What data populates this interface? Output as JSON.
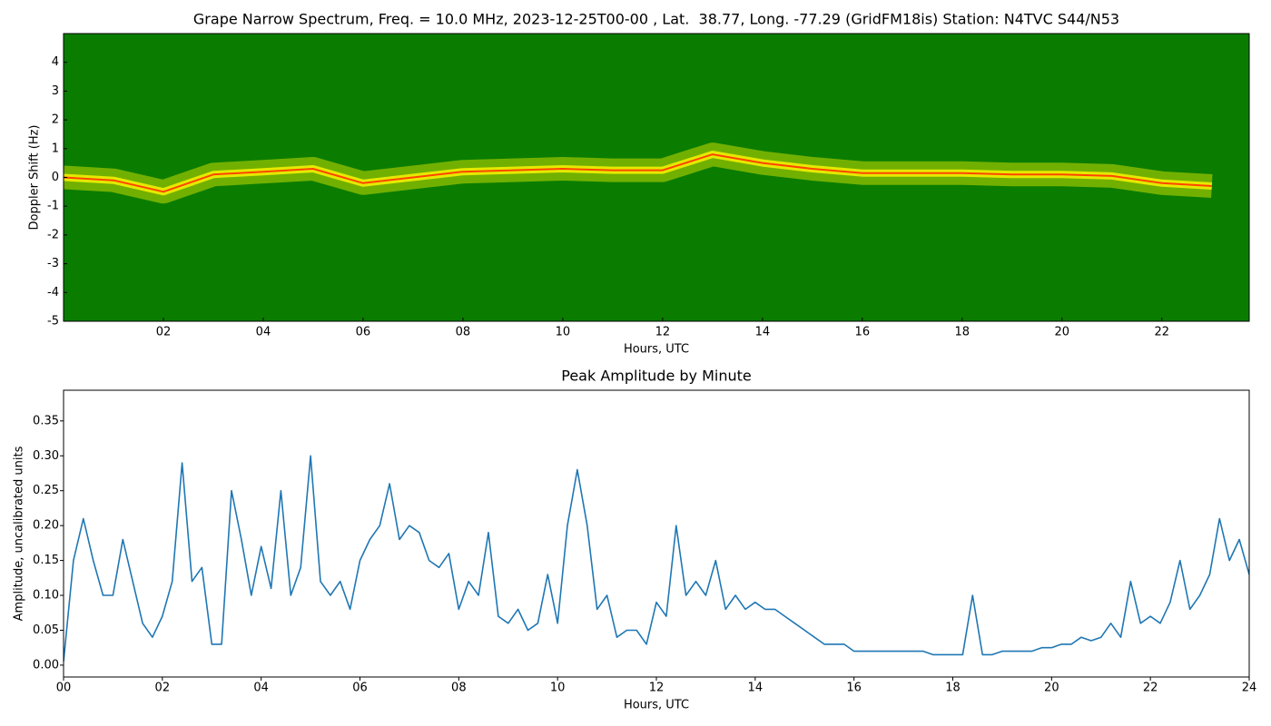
{
  "chart_data": [
    {
      "type": "spectrogram",
      "title": "Grape Narrow Spectrum, Freq. = 10.0 MHz, 2023-12-25T00-00 , Lat.  38.77, Long. -77.29 (GridFM18is) Station: N4TVC S44/N53",
      "x_label": "Hours, UTC",
      "y_label": "Doppler Shift (Hz)",
      "xlim": [
        0,
        23.75
      ],
      "ylim": [
        -5,
        5
      ],
      "xticks": [
        {
          "value": 2,
          "label": "02"
        },
        {
          "value": 4,
          "label": "04"
        },
        {
          "value": 6,
          "label": "06"
        },
        {
          "value": 8,
          "label": "08"
        },
        10,
        12,
        14,
        16,
        18,
        20,
        22
      ],
      "yticks": [
        -5,
        -4,
        -3,
        -2,
        -1,
        0,
        1,
        2,
        3,
        4
      ],
      "background_color": "#0a7d00",
      "band_color": "#f2f000",
      "color": "#ff4500",
      "x": [
        0,
        1,
        2,
        3,
        4,
        5,
        6,
        7,
        8,
        9,
        10,
        11,
        12,
        13,
        14,
        15,
        16,
        17,
        18,
        19,
        20,
        21,
        22,
        23
      ],
      "values": [
        0,
        -0.1,
        -0.5,
        0.1,
        0.2,
        0.3,
        -0.2,
        0,
        0.2,
        0.25,
        0.3,
        0.25,
        0.25,
        0.8,
        0.5,
        0.3,
        0.15,
        0.15,
        0.15,
        0.1,
        0.1,
        0.05,
        -0.2,
        -0.3
      ]
    },
    {
      "type": "line",
      "title": "Peak Amplitude by Minute",
      "x_label": "Hours, UTC",
      "y_label": "Amplitude, uncalibrated units",
      "xlim": [
        0,
        24
      ],
      "ylim": [
        -0.017,
        0.394
      ],
      "xticks": [
        {
          "value": 0,
          "label": "00"
        },
        {
          "value": 2,
          "label": "02"
        },
        {
          "value": 4,
          "label": "04"
        },
        {
          "value": 6,
          "label": "06"
        },
        {
          "value": 8,
          "label": "08"
        },
        10,
        12,
        14,
        16,
        18,
        20,
        22,
        24
      ],
      "yticks": [
        {
          "value": 0,
          "label": "0.00"
        },
        {
          "value": 0.05,
          "label": "0.05"
        },
        {
          "value": 0.1,
          "label": "0.10"
        },
        {
          "value": 0.15,
          "label": "0.15"
        },
        {
          "value": 0.2,
          "label": "0.20"
        },
        {
          "value": 0.25,
          "label": "0.25"
        },
        {
          "value": 0.3,
          "label": "0.30"
        },
        {
          "value": 0.35,
          "label": "0.35"
        }
      ],
      "color": "#1f77b4",
      "x": [
        0,
        0.2,
        0.4,
        0.6,
        0.8,
        1,
        1.2,
        1.4,
        1.6,
        1.8,
        2,
        2.2,
        2.4,
        2.6,
        2.8,
        3,
        3.2,
        3.4,
        3.6,
        3.8,
        4,
        4.2,
        4.4,
        4.6,
        4.8,
        5,
        5.2,
        5.4,
        5.6,
        5.8,
        6,
        6.2,
        6.4,
        6.6,
        6.8,
        7,
        7.2,
        7.4,
        7.6,
        7.8,
        8,
        8.2,
        8.4,
        8.6,
        8.8,
        9,
        9.2,
        9.4,
        9.6,
        9.8,
        10,
        10.2,
        10.4,
        10.6,
        10.8,
        11,
        11.2,
        11.4,
        11.6,
        11.8,
        12,
        12.2,
        12.4,
        12.6,
        12.8,
        13,
        13.2,
        13.4,
        13.6,
        13.8,
        14,
        14.2,
        14.4,
        14.6,
        14.8,
        15,
        15.2,
        15.4,
        15.6,
        15.8,
        16,
        16.2,
        16.4,
        16.6,
        16.8,
        17,
        17.2,
        17.4,
        17.6,
        17.8,
        18,
        18.2,
        18.4,
        18.6,
        18.8,
        19,
        19.2,
        19.4,
        19.6,
        19.8,
        20,
        20.2,
        20.4,
        20.6,
        20.8,
        21,
        21.2,
        21.4,
        21.6,
        21.8,
        22,
        22.2,
        22.4,
        22.6,
        22.8,
        23,
        23.2,
        23.4,
        23.6,
        23.8,
        24
      ],
      "values": [
        0.005,
        0.15,
        0.21,
        0.15,
        0.1,
        0.1,
        0.18,
        0.12,
        0.06,
        0.04,
        0.07,
        0.12,
        0.29,
        0.12,
        0.14,
        0.03,
        0.03,
        0.25,
        0.18,
        0.1,
        0.17,
        0.11,
        0.25,
        0.1,
        0.14,
        0.3,
        0.12,
        0.1,
        0.12,
        0.08,
        0.15,
        0.18,
        0.2,
        0.26,
        0.18,
        0.2,
        0.19,
        0.15,
        0.14,
        0.16,
        0.08,
        0.12,
        0.1,
        0.19,
        0.07,
        0.06,
        0.08,
        0.05,
        0.06,
        0.13,
        0.06,
        0.2,
        0.28,
        0.2,
        0.08,
        0.1,
        0.04,
        0.05,
        0.05,
        0.03,
        0.09,
        0.07,
        0.2,
        0.1,
        0.12,
        0.1,
        0.15,
        0.08,
        0.1,
        0.08,
        0.09,
        0.08,
        0.08,
        0.07,
        0.06,
        0.05,
        0.04,
        0.03,
        0.03,
        0.03,
        0.02,
        0.02,
        0.02,
        0.02,
        0.02,
        0.02,
        0.02,
        0.02,
        0.015,
        0.015,
        0.015,
        0.015,
        0.1,
        0.015,
        0.015,
        0.02,
        0.02,
        0.02,
        0.02,
        0.025,
        0.025,
        0.03,
        0.03,
        0.04,
        0.035,
        0.04,
        0.06,
        0.04,
        0.12,
        0.06,
        0.07,
        0.06,
        0.09,
        0.15,
        0.08,
        0.1,
        0.13,
        0.21,
        0.15,
        0.18,
        0.13
      ]
    }
  ]
}
